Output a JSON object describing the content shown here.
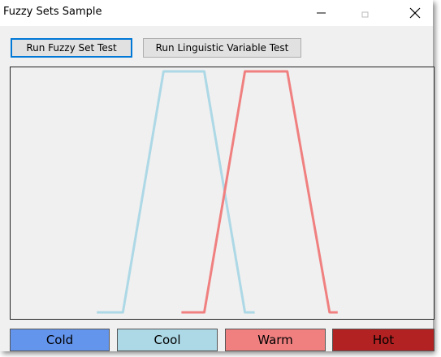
{
  "window": {
    "title": "Fuzzy Sets Sample"
  },
  "toolbar": {
    "fuzzy_set_test_label": "Run Fuzzy Set Test",
    "linguistic_variable_test_label": "Run Linguistic Variable Test"
  },
  "legend": [
    {
      "label": "Cold",
      "color": "#6495ed"
    },
    {
      "label": "Cool",
      "color": "#add8e6"
    },
    {
      "label": "Warm",
      "color": "#f08080"
    },
    {
      "label": "Hot",
      "color": "#b22222"
    }
  ],
  "chart_data": {
    "type": "line",
    "title": "",
    "xlabel": "",
    "ylabel": "",
    "grid": false,
    "xlim": [
      0,
      520
    ],
    "ylim": [
      0,
      1
    ],
    "series": [
      {
        "color": "#add8e6",
        "x": [
          106,
          138,
          188,
          238,
          288,
          300
        ],
        "y": [
          0,
          0,
          1,
          1,
          0,
          0
        ]
      },
      {
        "color": "#f08080",
        "x": [
          210,
          238,
          288,
          340,
          392,
          402
        ],
        "y": [
          0,
          0,
          1,
          1,
          0,
          0
        ]
      }
    ]
  }
}
